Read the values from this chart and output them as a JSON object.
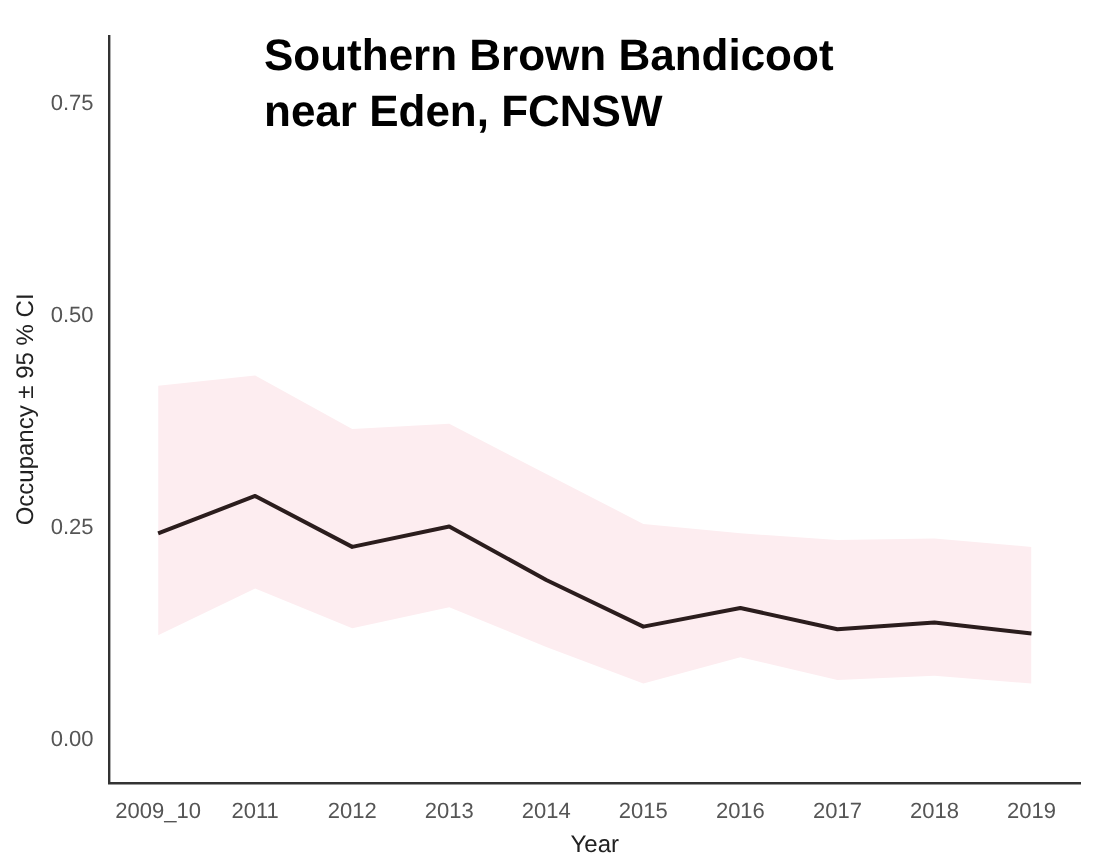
{
  "chart_data": {
    "type": "line",
    "title": "Southern Brown Bandicoot\nnear Eden, FCNSW",
    "xlabel": "Year",
    "ylabel": "Occupancy ± 95 % CI",
    "categories": [
      "2009_10",
      "2011",
      "2012",
      "2013",
      "2014",
      "2015",
      "2016",
      "2017",
      "2018",
      "2019"
    ],
    "series": [
      {
        "color": "#2b1d1d",
        "values": [
          0.244,
          0.288,
          0.228,
          0.252,
          0.189,
          0.134,
          0.156,
          0.131,
          0.139,
          0.126
        ],
        "lower": [
          0.124,
          0.179,
          0.132,
          0.157,
          0.11,
          0.067,
          0.098,
          0.071,
          0.076,
          0.067
        ],
        "upper": [
          0.418,
          0.43,
          0.367,
          0.373,
          0.314,
          0.255,
          0.244,
          0.236,
          0.238,
          0.228
        ]
      }
    ],
    "ylim": [
      -0.05,
      0.83
    ],
    "yticks": [
      {
        "value": 0,
        "label": "0.00"
      },
      {
        "value": 0.25,
        "label": "0.25"
      },
      {
        "value": 0.5,
        "label": "0.50"
      },
      {
        "value": 0.75,
        "label": "0.75"
      }
    ],
    "grid": false,
    "legend": false,
    "marker": "none",
    "line_style": "solid"
  }
}
